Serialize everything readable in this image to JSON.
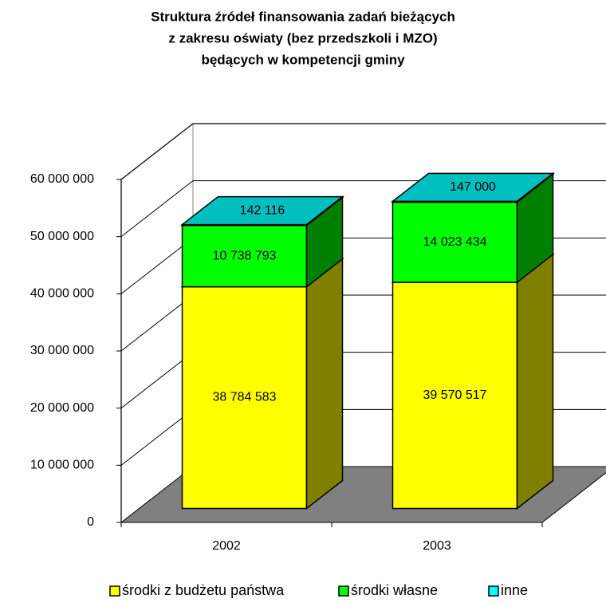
{
  "chart_data": {
    "type": "bar3d_stacked",
    "title": [
      "Struktura źródeł finansowania zadań bieżących",
      "z zakresu oświaty (bez przedszkoli i MZO)",
      "będących w kompetencji gminy"
    ],
    "categories": [
      "2002",
      "2003"
    ],
    "series": [
      {
        "name": "środki z budżetu państwa",
        "color": "#ffff00",
        "values": [
          38784583,
          39570517
        ],
        "value_labels": [
          "38 784 583",
          "39 570 517"
        ]
      },
      {
        "name": "środki własne",
        "color": "#00ff00",
        "values": [
          10738793,
          14023434
        ],
        "value_labels": [
          "10 738 793",
          "14 023 434"
        ]
      },
      {
        "name": "inne",
        "color": "#00ffff",
        "values": [
          142116,
          147000
        ],
        "value_labels": [
          "142 116",
          "147 000"
        ]
      }
    ],
    "ylim": [
      0,
      60000000
    ],
    "yticks": [
      0,
      {
        "value": 10000000,
        "label": "10 000 000"
      },
      {
        "value": 20000000,
        "label": "20 000 000"
      },
      {
        "value": 30000000,
        "label": "30 000 000"
      },
      {
        "value": 40000000,
        "label": "40 000 000"
      },
      {
        "value": 50000000,
        "label": "50 000 000"
      },
      {
        "value": 60000000,
        "label": "60 000 000"
      }
    ],
    "grid": true,
    "legend": "bottom"
  }
}
